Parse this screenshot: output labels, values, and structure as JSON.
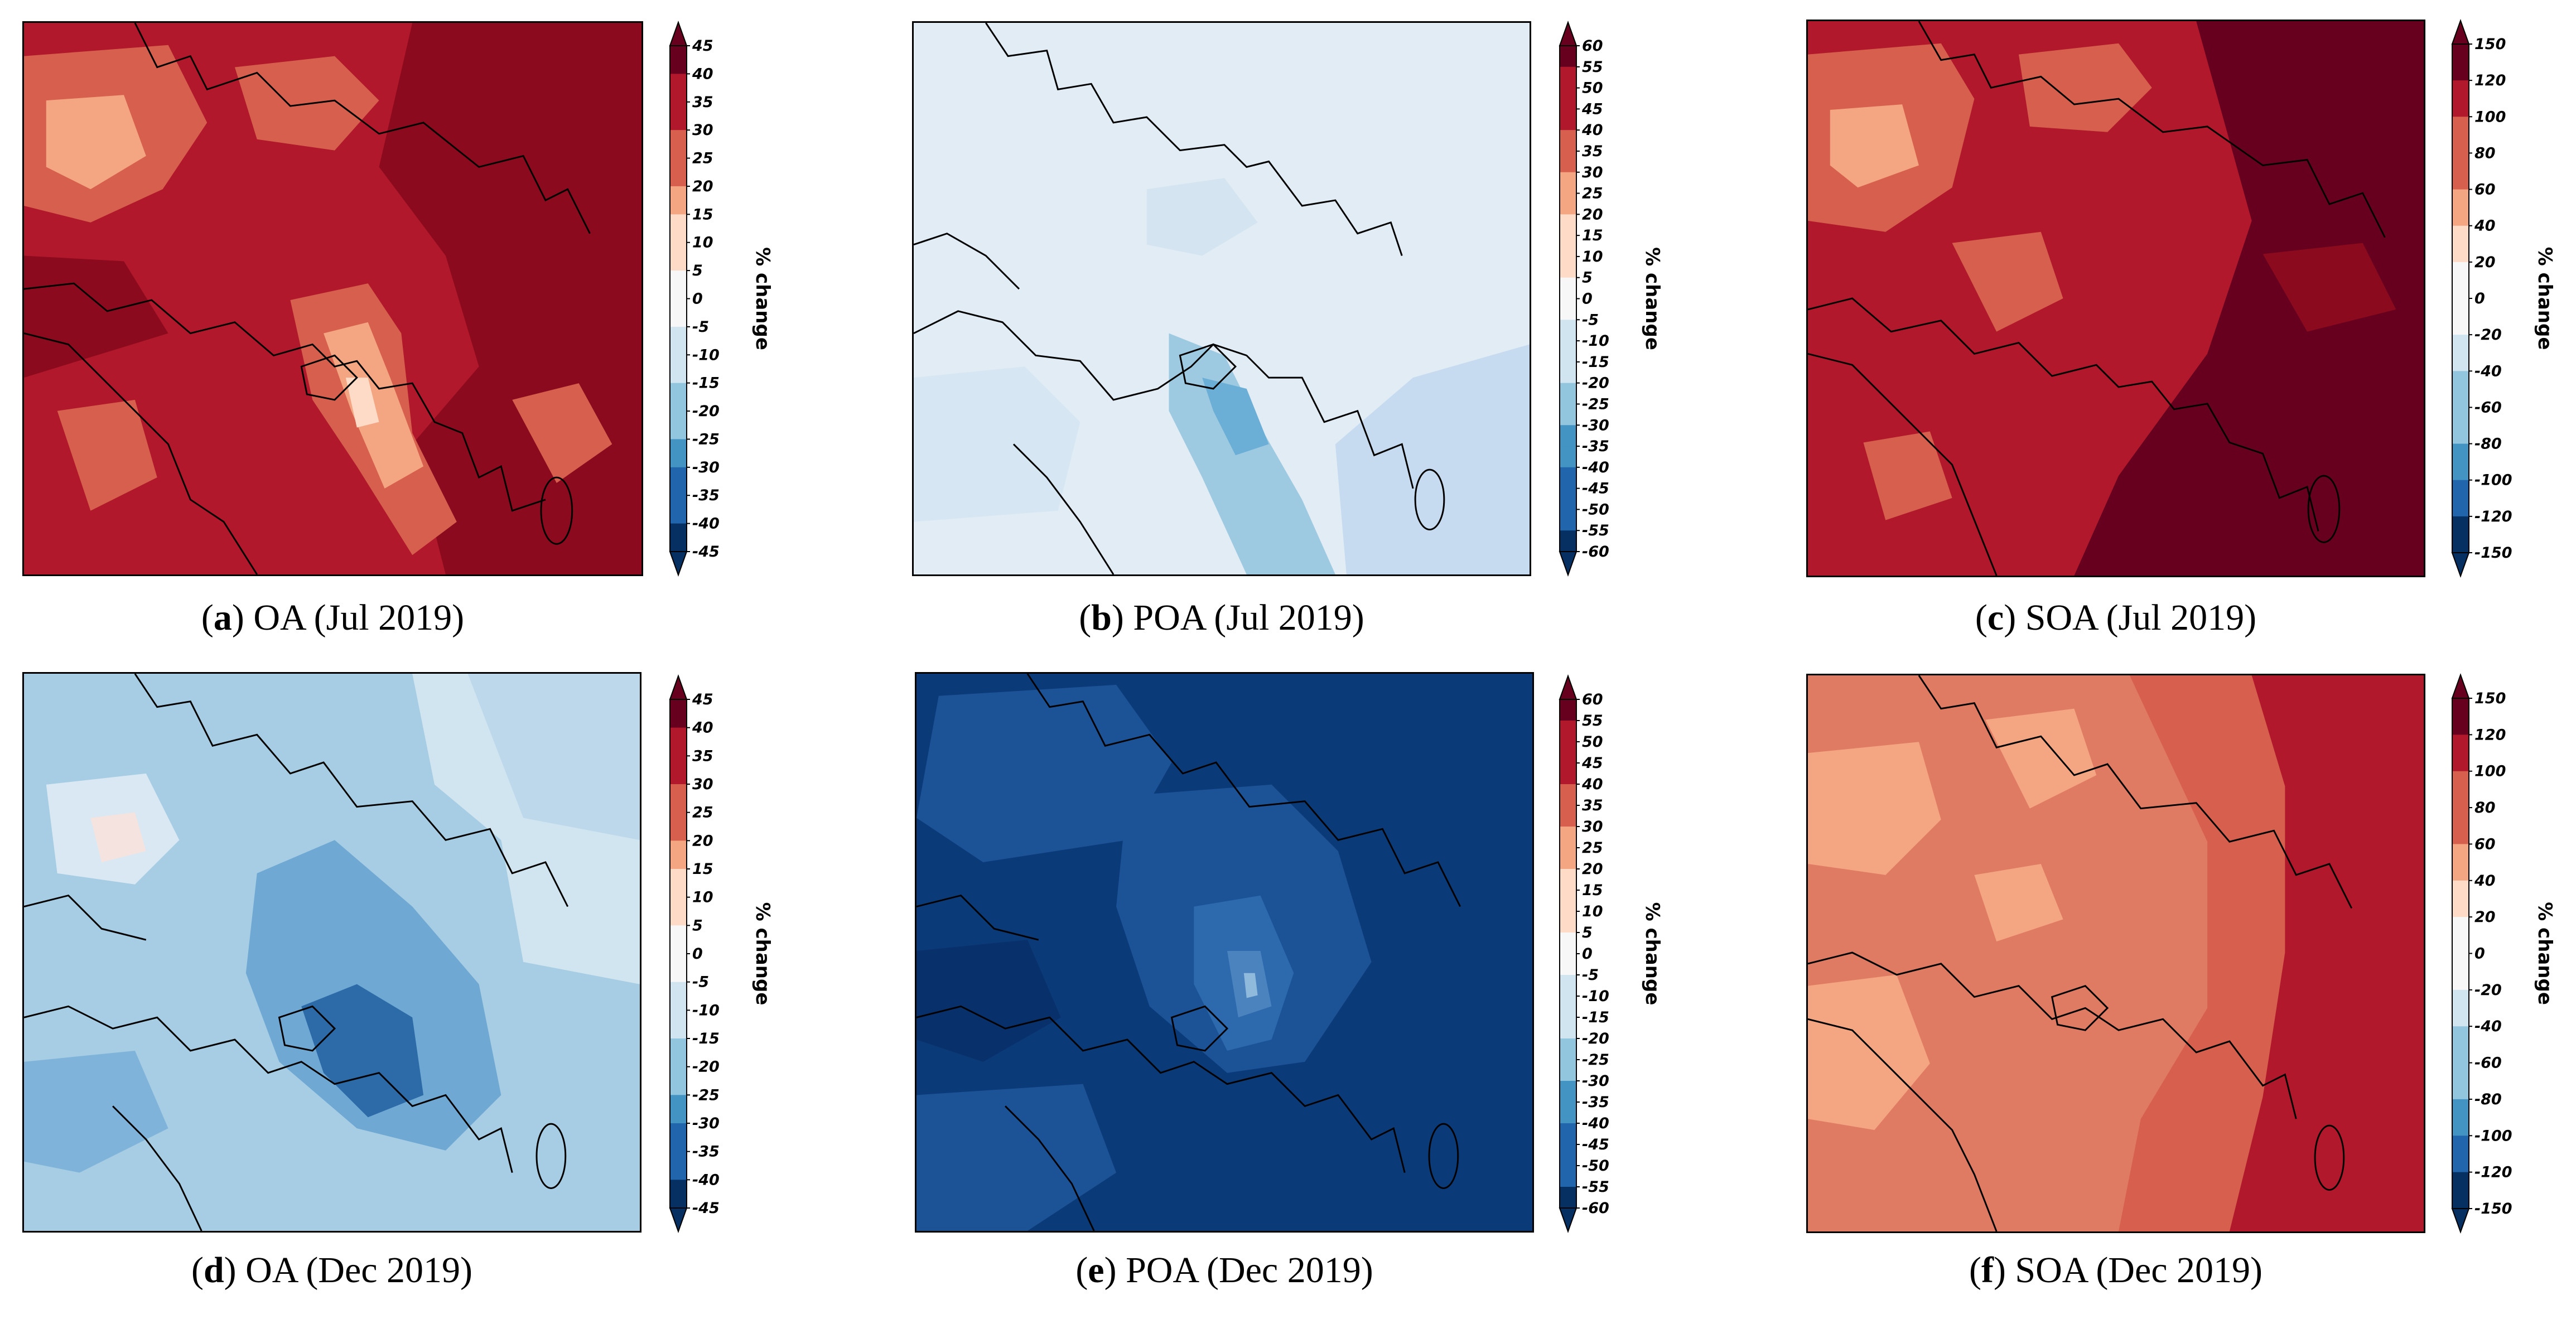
{
  "colorbar_label": "% change",
  "palettes": {
    "diverging": [
      "#053061",
      "#2166ac",
      "#4393c3",
      "#92c5de",
      "#d1e5f0",
      "#f7f7f7",
      "#fddbc7",
      "#f4a582",
      "#d6604d",
      "#b2182b",
      "#67001f"
    ]
  },
  "panels": [
    {
      "id": "a",
      "letter": "a",
      "caption": " OA (Jul 2019)",
      "pollutant": "OA",
      "period": "Jul 2019",
      "color_min": -45,
      "color_max": 45,
      "ticks": [
        "45",
        "40",
        "35",
        "30",
        "25",
        "20",
        "15",
        "10",
        "5",
        "0",
        "-5",
        "-10",
        "-15",
        "-20",
        "-25",
        "-30",
        "-35",
        "-40",
        "-45"
      ],
      "dominant_colors": [
        "#8b0a1e",
        "#b2182b",
        "#d6604d",
        "#f4a582"
      ]
    },
    {
      "id": "b",
      "letter": "b",
      "caption": " POA (Jul 2019)",
      "pollutant": "POA",
      "period": "Jul 2019",
      "color_min": -60,
      "color_max": 60,
      "ticks": [
        "60",
        "55",
        "50",
        "45",
        "40",
        "35",
        "30",
        "25",
        "20",
        "15",
        "10",
        "5",
        "0",
        "-5",
        "-10",
        "-15",
        "-20",
        "-25",
        "-30",
        "-35",
        "-40",
        "-45",
        "-50",
        "-55",
        "-60"
      ],
      "dominant_colors": [
        "#e1ecf5",
        "#c6dbef",
        "#9ecae1"
      ]
    },
    {
      "id": "c",
      "letter": "c",
      "caption": " SOA (Jul 2019)",
      "pollutant": "SOA",
      "period": "Jul 2019",
      "color_min": -150,
      "color_max": 150,
      "ticks": [
        "150",
        "120",
        "100",
        "80",
        "60",
        "40",
        "20",
        "0",
        "-20",
        "-40",
        "-60",
        "-80",
        "-100",
        "-120",
        "-150"
      ],
      "dominant_colors": [
        "#67001f",
        "#b2182b",
        "#d6604d",
        "#f4a582"
      ]
    },
    {
      "id": "d",
      "letter": "d",
      "caption": " OA (Dec 2019)",
      "pollutant": "OA",
      "period": "Dec 2019",
      "color_min": -45,
      "color_max": 45,
      "ticks": [
        "45",
        "40",
        "35",
        "30",
        "25",
        "20",
        "15",
        "10",
        "5",
        "0",
        "-5",
        "-10",
        "-15",
        "-20",
        "-25",
        "-30",
        "-35",
        "-40",
        "-45"
      ],
      "dominant_colors": [
        "#d1e5f0",
        "#a6cde3",
        "#6fa8d3",
        "#2c6aa8"
      ]
    },
    {
      "id": "e",
      "letter": "e",
      "caption": " POA (Dec 2019)",
      "pollutant": "POA",
      "period": "Dec 2019",
      "color_min": -60,
      "color_max": 60,
      "ticks": [
        "60",
        "55",
        "50",
        "45",
        "40",
        "35",
        "30",
        "25",
        "20",
        "15",
        "10",
        "5",
        "0",
        "-5",
        "-10",
        "-15",
        "-20",
        "-25",
        "-30",
        "-35",
        "-40",
        "-45",
        "-50",
        "-55",
        "-60"
      ],
      "dominant_colors": [
        "#0b3a78",
        "#1c5296",
        "#4b83bf",
        "#8fbadc"
      ]
    },
    {
      "id": "f",
      "letter": "f",
      "caption": " SOA (Dec 2019)",
      "pollutant": "SOA",
      "period": "Dec 2019",
      "color_min": -150,
      "color_max": 150,
      "ticks": [
        "150",
        "120",
        "100",
        "80",
        "60",
        "40",
        "20",
        "0",
        "-20",
        "-40",
        "-60",
        "-80",
        "-100",
        "-120",
        "-150"
      ],
      "dominant_colors": [
        "#f4a582",
        "#e07b63",
        "#d6604d",
        "#b2182b"
      ]
    }
  ]
}
